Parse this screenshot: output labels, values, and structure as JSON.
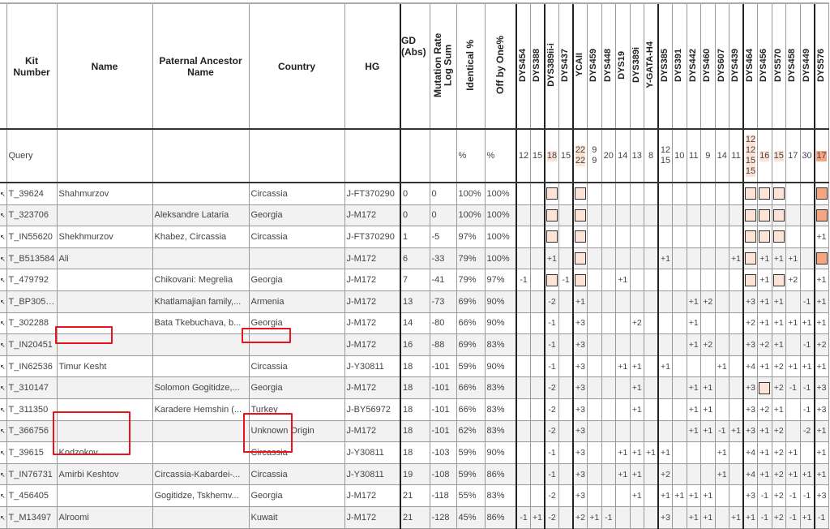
{
  "headers": {
    "kit_number": "Kit Number",
    "name": "Name",
    "paternal_ancestor": "Paternal Ancestor Name",
    "country": "Country",
    "hg": "HG",
    "gd": "GD (Abs)",
    "mutation_rate": "Mutation Rate Log Sum",
    "identical": "Identical %",
    "off_by_one": "Off by One%",
    "markers": [
      "DYS454",
      "DYS388",
      "DYS389ii-i",
      "DYS437",
      "YCAII",
      "DYS459",
      "DYS448",
      "DYS19",
      "DYS389i",
      "Y-GATA-H4",
      "DYS385",
      "DYS391",
      "DYS442",
      "DYS460",
      "DYS607",
      "DYS439",
      "DYS464",
      "DYS456",
      "DYS570",
      "DYS458",
      "DYS449",
      "DYS576"
    ]
  },
  "query": {
    "label": "Query",
    "identical": "%",
    "off_by_one": "%",
    "values": [
      [
        "12"
      ],
      [
        "15"
      ],
      [
        "18"
      ],
      [
        "15"
      ],
      [
        "22",
        "22"
      ],
      [
        "9",
        "9"
      ],
      [
        "20"
      ],
      [
        "14"
      ],
      [
        "13"
      ],
      [
        "8"
      ],
      [
        "12",
        "15"
      ],
      [
        "10"
      ],
      [
        "11"
      ],
      [
        "9"
      ],
      [
        "14"
      ],
      [
        "11"
      ],
      [
        "12",
        "12",
        "15",
        "15"
      ],
      [
        "16"
      ],
      [
        "15"
      ],
      [
        "17"
      ],
      [
        "30"
      ],
      [
        "17"
      ]
    ],
    "highlight": [
      "",
      "",
      "light",
      "",
      "light",
      "",
      "",
      "",
      "",
      "",
      "",
      "",
      "",
      "",
      "",
      "",
      "light",
      "light",
      "light",
      "",
      "",
      "strong"
    ]
  },
  "colors": {
    "highlight_light": "#fde3d6",
    "highlight_strong": "#f4a582",
    "annotation_red": "#e8141b",
    "row_stripe": "#f2f2f2"
  },
  "rows": [
    {
      "kit": "T_39624",
      "name": "Shahmurzov",
      "ancestor": "",
      "country": "Circassia",
      "hg": "J-FT370290",
      "gd": "0",
      "mr": "0",
      "ident": "100%",
      "off": "100%",
      "str": [
        "",
        "",
        "[]",
        "",
        "[]",
        "",
        "",
        "",
        "",
        "",
        "",
        "",
        "",
        "",
        "",
        "",
        "[]",
        "[]",
        "[]",
        "",
        "",
        "[!]"
      ]
    },
    {
      "kit": "T_323706",
      "name": "",
      "ancestor": "Aleksandre Lataria",
      "country": "Georgia",
      "hg": "J-M172",
      "gd": "0",
      "mr": "0",
      "ident": "100%",
      "off": "100%",
      "str": [
        "",
        "",
        "[]",
        "",
        "[]",
        "",
        "",
        "",
        "",
        "",
        "",
        "",
        "",
        "",
        "",
        "",
        "[]",
        "[]",
        "[]",
        "",
        "",
        "[!]"
      ]
    },
    {
      "kit": "T_IN55620",
      "name": "Shekhmurzov",
      "ancestor": "Khabez, Circassia",
      "country": "Circassia",
      "hg": "J-FT370290",
      "gd": "1",
      "mr": "-5",
      "ident": "97%",
      "off": "100%",
      "str": [
        "",
        "",
        "[]",
        "",
        "[]",
        "",
        "",
        "",
        "",
        "",
        "",
        "",
        "",
        "",
        "",
        "",
        "[]",
        "[]",
        "[]",
        "",
        "",
        "+1"
      ]
    },
    {
      "kit": "T_B513584",
      "name": "Ali",
      "ancestor": "",
      "country": "",
      "hg": "J-M172",
      "gd": "6",
      "mr": "-33",
      "ident": "79%",
      "off": "100%",
      "str": [
        "",
        "",
        "+1",
        "",
        "[]",
        "",
        "",
        "",
        "",
        "",
        "+1",
        "",
        "",
        "",
        "",
        "+1",
        "[]",
        "+1",
        "+1",
        "+1",
        "",
        "[!]"
      ]
    },
    {
      "kit": "T_479792",
      "name": "",
      "ancestor": "Chikovani: Megrelia",
      "country": "Georgia",
      "hg": "J-M172",
      "gd": "7",
      "mr": "-41",
      "ident": "79%",
      "off": "97%",
      "str": [
        "-1",
        "",
        "[]",
        "-1",
        "[]",
        "",
        "",
        "+1",
        "",
        "",
        "",
        "",
        "",
        "",
        "",
        "",
        "[]",
        "+1",
        "[]",
        "+2",
        "",
        "+1"
      ]
    },
    {
      "kit": "T_BP30525",
      "name": "",
      "ancestor": "Khatlamajian family,...",
      "country": "Armenia",
      "hg": "J-M172",
      "gd": "13",
      "mr": "-73",
      "ident": "69%",
      "off": "90%",
      "str": [
        "",
        "",
        "-2",
        "",
        "+1",
        "",
        "",
        "",
        "",
        "",
        "",
        "",
        "+1",
        "+2",
        "",
        "",
        "+3",
        "+1",
        "+1",
        "",
        "-1",
        "+1"
      ]
    },
    {
      "kit": "T_302288",
      "name": "",
      "ancestor": "Bata Tkebuchava, b...",
      "country": "Georgia",
      "hg": "J-M172",
      "gd": "14",
      "mr": "-80",
      "ident": "66%",
      "off": "90%",
      "str": [
        "",
        "",
        "-1",
        "",
        "+3",
        "",
        "",
        "",
        "+2",
        "",
        "",
        "",
        "+1",
        "",
        "",
        "",
        "+2",
        "+1",
        "+1",
        "+1",
        "+1",
        "+1"
      ]
    },
    {
      "kit": "T_IN20451",
      "name": "",
      "ancestor": "",
      "country": "",
      "hg": "J-M172",
      "gd": "16",
      "mr": "-88",
      "ident": "69%",
      "off": "83%",
      "str": [
        "",
        "",
        "-1",
        "",
        "+3",
        "",
        "",
        "",
        "",
        "",
        "",
        "",
        "+1",
        "+2",
        "",
        "",
        "+3",
        "+2",
        "+1",
        "",
        "-1",
        "+2"
      ]
    },
    {
      "kit": "T_IN62536",
      "name": "Timur Kesht",
      "ancestor": "",
      "country": "Circassia",
      "hg": "J-Y30811",
      "gd": "18",
      "mr": "-101",
      "ident": "59%",
      "off": "90%",
      "str": [
        "",
        "",
        "-1",
        "",
        "+3",
        "",
        "",
        "+1",
        "+1",
        "",
        "+1",
        "",
        "",
        "",
        "+1",
        "",
        "+4",
        "+1",
        "+2",
        "+1",
        "+1",
        "+1"
      ]
    },
    {
      "kit": "T_310147",
      "name": "",
      "ancestor": "Solomon Gogitidze,...",
      "country": "Georgia",
      "hg": "J-M172",
      "gd": "18",
      "mr": "-101",
      "ident": "66%",
      "off": "83%",
      "str": [
        "",
        "",
        "-2",
        "",
        "+3",
        "",
        "",
        "",
        "+1",
        "",
        "",
        "",
        "+1",
        "+1",
        "",
        "",
        "+3",
        "[]",
        "+2",
        "-1",
        "-1",
        "+3"
      ]
    },
    {
      "kit": "T_311350",
      "name": "",
      "ancestor": "Karadere Hemshin (...",
      "country": "Turkey",
      "hg": "J-BY56972",
      "gd": "18",
      "mr": "-101",
      "ident": "66%",
      "off": "83%",
      "str": [
        "",
        "",
        "-2",
        "",
        "+3",
        "",
        "",
        "",
        "+1",
        "",
        "",
        "",
        "+1",
        "+1",
        "",
        "",
        "+3",
        "+2",
        "+1",
        "",
        "-1",
        "+3"
      ]
    },
    {
      "kit": "T_366756",
      "name": "",
      "ancestor": "",
      "country": "Unknown Origin",
      "hg": "J-M172",
      "gd": "18",
      "mr": "-101",
      "ident": "62%",
      "off": "83%",
      "str": [
        "",
        "",
        "-2",
        "",
        "+3",
        "",
        "",
        "",
        "",
        "",
        "",
        "",
        "+1",
        "+1",
        "-1",
        "+1",
        "+3",
        "+1",
        "+2",
        "",
        "-2",
        "+1"
      ]
    },
    {
      "kit": "T_39615",
      "name": "Kodzokov",
      "ancestor": "",
      "country": "Circassia",
      "hg": "J-Y30811",
      "gd": "18",
      "mr": "-103",
      "ident": "59%",
      "off": "90%",
      "str": [
        "",
        "",
        "-1",
        "",
        "+3",
        "",
        "",
        "+1",
        "+1",
        "+1",
        "+1",
        "",
        "",
        "",
        "+1",
        "",
        "+4",
        "+1",
        "+2",
        "+1",
        "",
        "+1"
      ]
    },
    {
      "kit": "T_IN76731",
      "name": "Amirbi Keshtov",
      "ancestor": "Circassia-Kabardei-...",
      "country": "Circassia",
      "hg": "J-Y30811",
      "gd": "19",
      "mr": "-108",
      "ident": "59%",
      "off": "86%",
      "str": [
        "",
        "",
        "-1",
        "",
        "+3",
        "",
        "",
        "+1",
        "+1",
        "",
        "+2",
        "",
        "",
        "",
        "+1",
        "",
        "+4",
        "+1",
        "+2",
        "+1",
        "+1",
        "+1"
      ]
    },
    {
      "kit": "T_456405",
      "name": "",
      "ancestor": "Gogitidze, Tskhemv...",
      "country": "Georgia",
      "hg": "J-M172",
      "gd": "21",
      "mr": "-118",
      "ident": "55%",
      "off": "83%",
      "str": [
        "",
        "",
        "-2",
        "",
        "+3",
        "",
        "",
        "",
        "+1",
        "",
        "+1",
        "+1",
        "+1",
        "+1",
        "",
        "",
        "+3",
        "-1",
        "+2",
        "-1",
        "-1",
        "+3"
      ]
    },
    {
      "kit": "T_M13497",
      "name": "Alroomi",
      "ancestor": "",
      "country": "Kuwait",
      "hg": "J-M172",
      "gd": "21",
      "mr": "-128",
      "ident": "45%",
      "off": "86%",
      "str": [
        "-1",
        "+1",
        "-2",
        "",
        "+2",
        "+1",
        "-1",
        "",
        "",
        "",
        "+3",
        "",
        "+1",
        "+1",
        "",
        "+1",
        "+1",
        "-1",
        "+2",
        "-1",
        "+1",
        "-1"
      ]
    }
  ]
}
